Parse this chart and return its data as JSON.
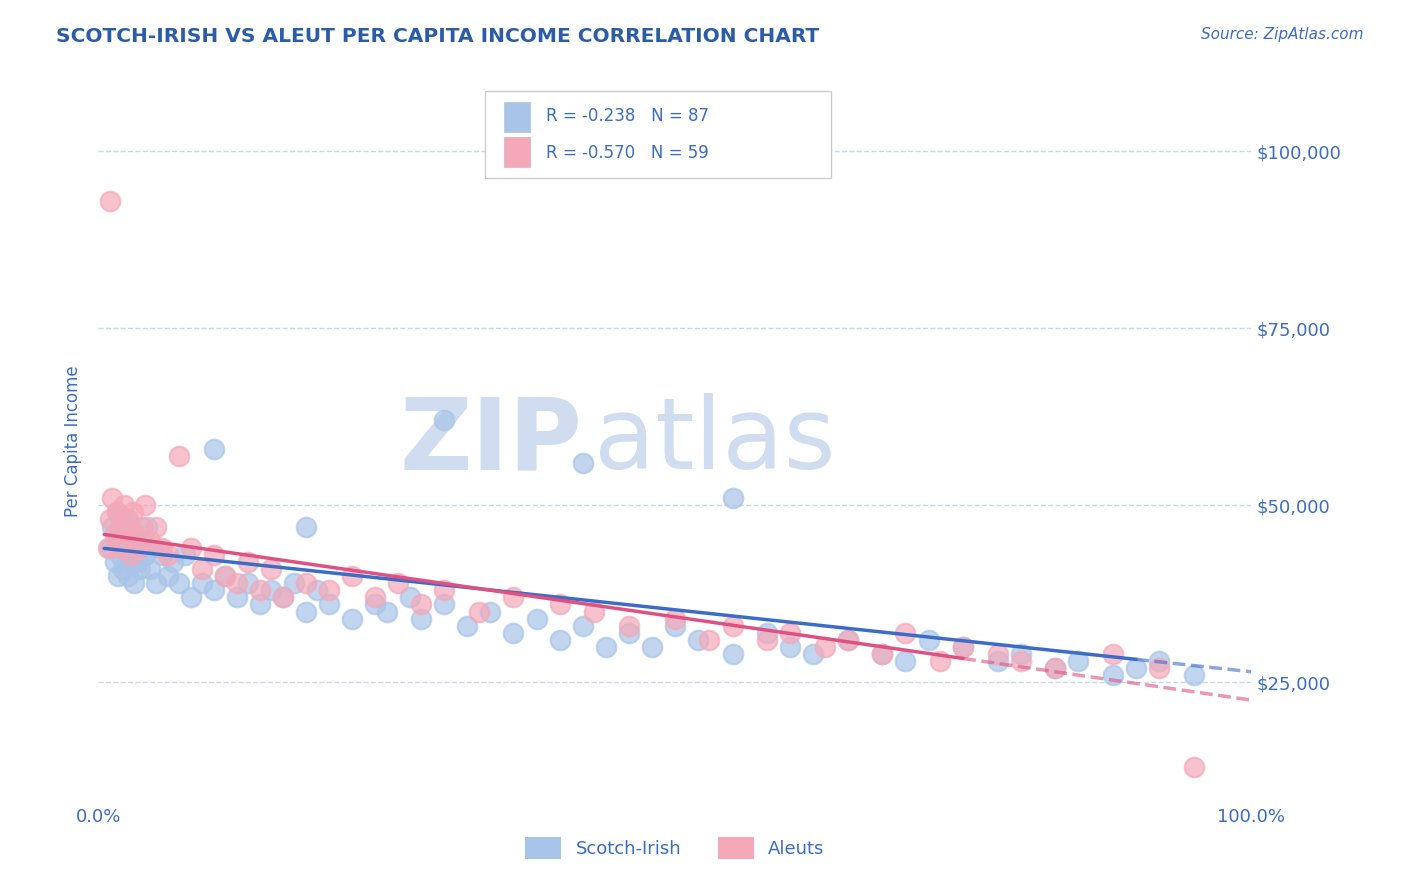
{
  "title": "SCOTCH-IRISH VS ALEUT PER CAPITA INCOME CORRELATION CHART",
  "source_text": "Source: ZipAtlas.com",
  "ylabel": "Per Capita Income",
  "title_color": "#2a5caa",
  "tick_label_color": "#3b6cc7",
  "grid_color": "#c8d8e8",
  "background_color": "#ffffff",
  "scotch_irish_color": "#a8c4e8",
  "aleut_color": "#f4a8b8",
  "scotch_irish_line_color": "#3b6cc7",
  "aleut_line_color": "#e05080",
  "watermark_color": "#d0ddf0",
  "scotch_irish_x": [
    1.0,
    1.2,
    1.4,
    1.5,
    1.6,
    1.7,
    1.8,
    1.9,
    2.0,
    2.1,
    2.2,
    2.3,
    2.4,
    2.5,
    2.6,
    2.7,
    2.8,
    2.9,
    3.0,
    3.1,
    3.2,
    3.4,
    3.5,
    3.6,
    3.8,
    4.0,
    4.2,
    4.5,
    4.7,
    5.0,
    5.5,
    6.0,
    6.5,
    7.0,
    7.5,
    8.0,
    9.0,
    10.0,
    11.0,
    12.0,
    13.0,
    14.0,
    15.0,
    16.0,
    17.0,
    18.0,
    19.0,
    20.0,
    22.0,
    24.0,
    25.0,
    27.0,
    28.0,
    30.0,
    32.0,
    34.0,
    36.0,
    38.0,
    40.0,
    42.0,
    44.0,
    46.0,
    48.0,
    50.0,
    52.0,
    55.0,
    58.0,
    60.0,
    62.0,
    65.0,
    68.0,
    70.0,
    72.0,
    75.0,
    78.0,
    80.0,
    83.0,
    85.0,
    88.0,
    90.0,
    92.0,
    95.0,
    55.0,
    42.0,
    30.0,
    18.0,
    10.0
  ],
  "scotch_irish_y": [
    44000,
    47000,
    42000,
    45000,
    49000,
    40000,
    46000,
    43000,
    48000,
    41000,
    44000,
    47000,
    45000,
    48000,
    40000,
    43000,
    46000,
    44000,
    42000,
    39000,
    45000,
    42000,
    44000,
    41000,
    45000,
    43000,
    47000,
    41000,
    44000,
    39000,
    43000,
    40000,
    42000,
    39000,
    43000,
    37000,
    39000,
    38000,
    40000,
    37000,
    39000,
    36000,
    38000,
    37000,
    39000,
    35000,
    38000,
    36000,
    34000,
    36000,
    35000,
    37000,
    34000,
    36000,
    33000,
    35000,
    32000,
    34000,
    31000,
    33000,
    30000,
    32000,
    30000,
    33000,
    31000,
    29000,
    32000,
    30000,
    29000,
    31000,
    29000,
    28000,
    31000,
    30000,
    28000,
    29000,
    27000,
    28000,
    26000,
    27000,
    28000,
    26000,
    51000,
    56000,
    62000,
    47000,
    58000
  ],
  "aleut_x": [
    0.8,
    1.0,
    1.2,
    1.4,
    1.6,
    1.8,
    2.0,
    2.2,
    2.4,
    2.6,
    2.8,
    3.0,
    3.2,
    3.5,
    3.8,
    4.0,
    4.5,
    5.0,
    5.5,
    6.0,
    7.0,
    8.0,
    9.0,
    10.0,
    11.0,
    12.0,
    13.0,
    14.0,
    15.0,
    16.0,
    18.0,
    20.0,
    22.0,
    24.0,
    26.0,
    28.0,
    30.0,
    33.0,
    36.0,
    40.0,
    43.0,
    46.0,
    50.0,
    53.0,
    55.0,
    58.0,
    60.0,
    63.0,
    65.0,
    68.0,
    70.0,
    73.0,
    75.0,
    78.0,
    80.0,
    83.0,
    88.0,
    92.0,
    95.0
  ],
  "aleut_y": [
    44000,
    48000,
    51000,
    46000,
    49000,
    44000,
    47000,
    50000,
    46000,
    48000,
    43000,
    49000,
    46000,
    44000,
    47000,
    50000,
    45000,
    47000,
    44000,
    43000,
    57000,
    44000,
    41000,
    43000,
    40000,
    39000,
    42000,
    38000,
    41000,
    37000,
    39000,
    38000,
    40000,
    37000,
    39000,
    36000,
    38000,
    35000,
    37000,
    36000,
    35000,
    33000,
    34000,
    31000,
    33000,
    31000,
    32000,
    30000,
    31000,
    29000,
    32000,
    28000,
    30000,
    29000,
    28000,
    27000,
    29000,
    27000,
    13000
  ],
  "aleut_outlier_x": [
    1.0
  ],
  "aleut_outlier_y": [
    93000
  ]
}
